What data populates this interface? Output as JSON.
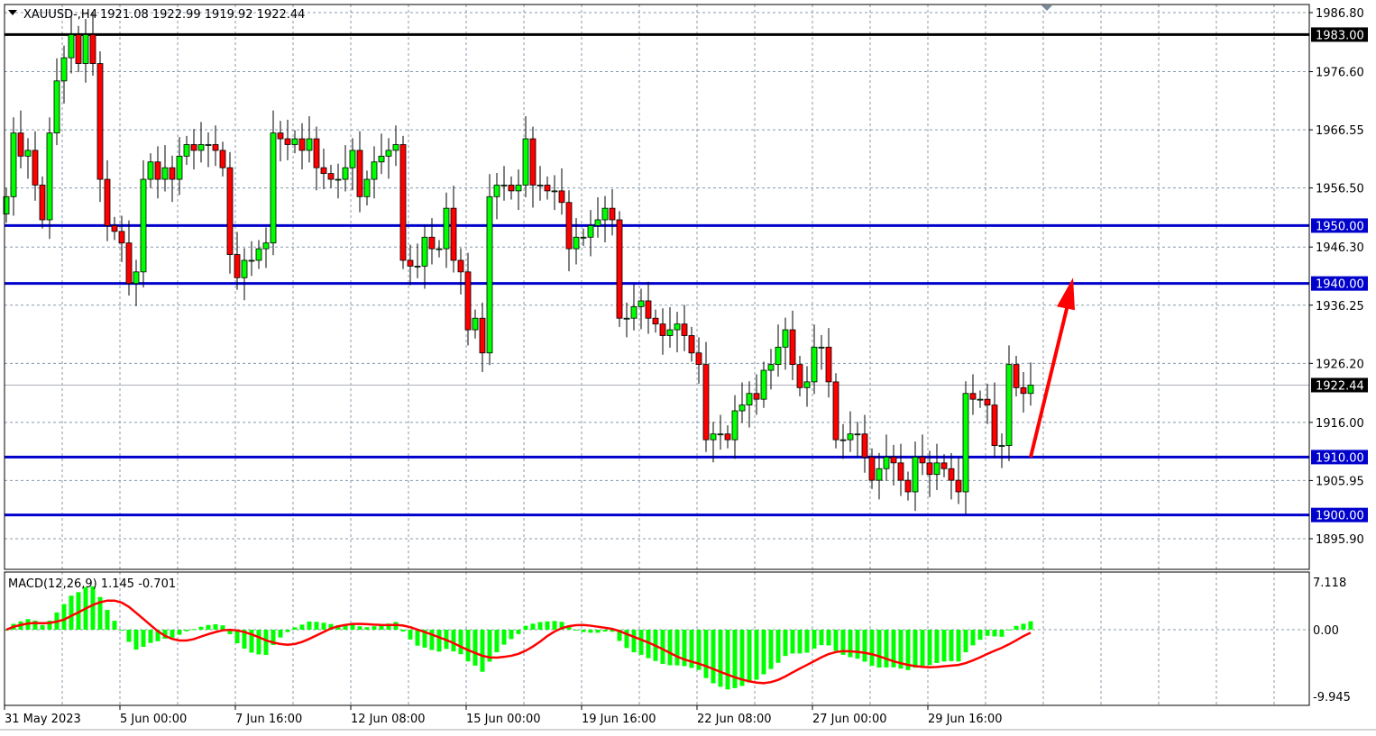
{
  "header": {
    "symbol": "XAUUSD-,H4",
    "ohlc": "1921.08 1922.99 1919.92 1922.44"
  },
  "colors": {
    "bull": "#00ff00",
    "bear": "#ff0000",
    "level_line": "#0000cc",
    "top_line": "#000000",
    "arrow": "#ff0000",
    "macd_hist": "#00ff00",
    "macd_signal": "#ff0000"
  },
  "chart_data": [
    {
      "type": "candlestick",
      "symbol": "XAUUSD-",
      "timeframe": "H4",
      "ylim": [
        1893.5,
        1989
      ],
      "grid": true,
      "y_ticks": [
        "1986.80",
        "1976.60",
        "1966.55",
        "1956.50",
        "1946.30",
        "1936.25",
        "1926.20",
        "1916.00",
        "1905.95",
        "1895.90"
      ],
      "x_ticks": [
        "31 May 2023",
        "5 Jun 00:00",
        "7 Jun 16:00",
        "12 Jun 08:00",
        "15 Jun 00:00",
        "19 Jun 16:00",
        "22 Jun 08:00",
        "27 Jun 00:00",
        "29 Jun 16:00"
      ],
      "closes": [
        1955,
        1966,
        1962,
        1963,
        1957,
        1951,
        1966,
        1975,
        1979,
        1983,
        1978,
        1983,
        1978,
        1958,
        1950,
        1949,
        1947,
        1940,
        1942,
        1958,
        1961,
        1958,
        1960,
        1958,
        1962,
        1964,
        1963,
        1964,
        1964,
        1963,
        1960,
        1945,
        1941,
        1944,
        1944,
        1946,
        1947,
        1966,
        1965,
        1964,
        1965,
        1963,
        1965,
        1960,
        1959,
        1958,
        1958,
        1960,
        1963,
        1955,
        1958,
        1961,
        1962,
        1963,
        1964,
        1944,
        1943,
        1943,
        1948,
        1946,
        1946,
        1953,
        1944,
        1942,
        1932,
        1934,
        1928,
        1955,
        1957,
        1957,
        1956,
        1957,
        1965,
        1957,
        1957,
        1956,
        1956,
        1954,
        1946,
        1948,
        1948,
        1950,
        1951,
        1953,
        1951,
        1934,
        1934,
        1936,
        1937,
        1934,
        1933,
        1931,
        1932,
        1933,
        1931,
        1928,
        1926,
        1913,
        1914,
        1914,
        1913,
        1918,
        1919,
        1921,
        1920,
        1925,
        1926,
        1929,
        1932,
        1926,
        1922,
        1923,
        1929,
        1929,
        1923,
        1913,
        1913,
        1914,
        1914,
        1910,
        1906,
        1908,
        1910,
        1909,
        1906,
        1904,
        1910,
        1909,
        1907,
        1909,
        1908,
        1906,
        1904,
        1921,
        1920,
        1920,
        1919,
        1912,
        1912,
        1926,
        1922,
        1921,
        1922.44
      ],
      "last_price": "1922.44",
      "levels": [
        {
          "price": 1983.0,
          "label": "1983.00",
          "color": "#000000"
        },
        {
          "price": 1950.0,
          "label": "1950.00",
          "color": "#0000cc"
        },
        {
          "price": 1940.0,
          "label": "1940.00",
          "color": "#0000cc"
        },
        {
          "price": 1910.0,
          "label": "1910.00",
          "color": "#0000cc"
        },
        {
          "price": 1900.0,
          "label": "1900.00",
          "color": "#0000cc"
        }
      ],
      "annotation_arrow": {
        "from_price": 1910.0,
        "to_price": 1941.0,
        "direction": "up",
        "color": "#ff0000"
      }
    },
    {
      "type": "bar+line",
      "indicator": "MACD(12,26,9)",
      "label": "MACD(12,26,9) 1.145 -0.701",
      "macd_value": 1.145,
      "signal_value": -0.701,
      "ylim": [
        -9.945,
        7.118
      ],
      "y_ticks": [
        "7.118",
        "0.00",
        "-9.945"
      ]
    }
  ]
}
